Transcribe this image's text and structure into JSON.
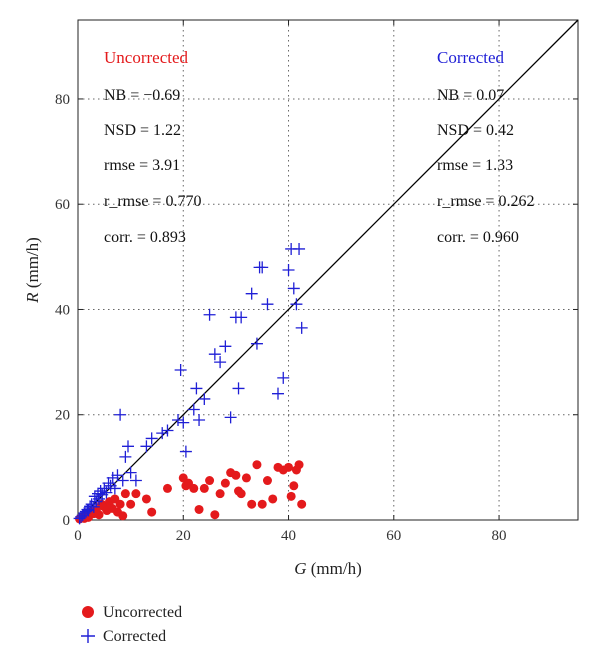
{
  "chart_data": {
    "type": "scatter",
    "xlabel_var": "G",
    "xlabel_unit": " (mm/h)",
    "ylabel_var": "R",
    "ylabel_unit": " (mm/h)",
    "xlim": [
      0,
      95
    ],
    "ylim": [
      0,
      95
    ],
    "xticks": [
      0,
      20,
      40,
      60,
      80
    ],
    "yticks": [
      0,
      20,
      40,
      60,
      80
    ],
    "grid": true,
    "reference_line": "1:1",
    "series": [
      {
        "name": "Uncorrected",
        "marker": "filled-circle",
        "color": "#e41a1c",
        "points": [
          [
            0.3,
            0.2
          ],
          [
            0.6,
            0.4
          ],
          [
            0.9,
            0.6
          ],
          [
            1.2,
            0.3
          ],
          [
            1.5,
            1.0
          ],
          [
            1.8,
            0.8
          ],
          [
            2.0,
            0.5
          ],
          [
            2.5,
            1.5
          ],
          [
            3.0,
            1.2
          ],
          [
            3.5,
            2.0
          ],
          [
            4.0,
            1.0
          ],
          [
            4.5,
            3.0
          ],
          [
            5.0,
            2.5
          ],
          [
            5.5,
            1.8
          ],
          [
            6.0,
            3.5
          ],
          [
            6.5,
            2.2
          ],
          [
            7.0,
            4.0
          ],
          [
            7.5,
            1.5
          ],
          [
            8.0,
            3.0
          ],
          [
            8.5,
            0.8
          ],
          [
            9.0,
            5.0
          ],
          [
            10.0,
            3.0
          ],
          [
            11.0,
            5.0
          ],
          [
            13.0,
            4.0
          ],
          [
            14.0,
            1.5
          ],
          [
            17.0,
            6.0
          ],
          [
            20.0,
            8.0
          ],
          [
            20.5,
            6.5
          ],
          [
            21.0,
            7.0
          ],
          [
            22.0,
            6.0
          ],
          [
            23.0,
            2.0
          ],
          [
            24.0,
            6.0
          ],
          [
            25.0,
            7.5
          ],
          [
            26.0,
            1.0
          ],
          [
            27.0,
            5.0
          ],
          [
            28.0,
            7.0
          ],
          [
            29.0,
            9.0
          ],
          [
            30.0,
            8.5
          ],
          [
            30.5,
            5.5
          ],
          [
            31.0,
            5.0
          ],
          [
            32.0,
            8.0
          ],
          [
            33.0,
            3.0
          ],
          [
            34.0,
            10.5
          ],
          [
            35.0,
            3.0
          ],
          [
            36.0,
            7.5
          ],
          [
            37.0,
            4.0
          ],
          [
            38.0,
            10.0
          ],
          [
            39.0,
            9.5
          ],
          [
            40.0,
            10.0
          ],
          [
            40.5,
            4.5
          ],
          [
            41.0,
            6.5
          ],
          [
            41.5,
            9.5
          ],
          [
            42.0,
            10.5
          ],
          [
            42.5,
            3.0
          ]
        ]
      },
      {
        "name": "Corrected",
        "marker": "plus",
        "color": "#1f1fd6",
        "points": [
          [
            0.3,
            0.3
          ],
          [
            0.6,
            0.6
          ],
          [
            0.9,
            0.9
          ],
          [
            1.2,
            1.3
          ],
          [
            1.5,
            1.6
          ],
          [
            1.8,
            2.0
          ],
          [
            2.0,
            1.8
          ],
          [
            2.3,
            2.6
          ],
          [
            2.6,
            3.0
          ],
          [
            3.0,
            2.5
          ],
          [
            3.2,
            4.5
          ],
          [
            3.5,
            3.5
          ],
          [
            3.8,
            5.0
          ],
          [
            4.0,
            4.0
          ],
          [
            4.3,
            5.5
          ],
          [
            4.6,
            4.8
          ],
          [
            5.0,
            6.0
          ],
          [
            5.4,
            5.2
          ],
          [
            5.8,
            7.0
          ],
          [
            6.2,
            6.5
          ],
          [
            6.6,
            8.0
          ],
          [
            7.0,
            6.0
          ],
          [
            7.5,
            8.5
          ],
          [
            8.0,
            20.0
          ],
          [
            8.5,
            7.5
          ],
          [
            9.0,
            12.0
          ],
          [
            9.5,
            14.0
          ],
          [
            10.0,
            9.0
          ],
          [
            11.0,
            7.5
          ],
          [
            13.0,
            14.0
          ],
          [
            14.0,
            15.5
          ],
          [
            16.0,
            16.5
          ],
          [
            17.0,
            17.0
          ],
          [
            19.0,
            19.0
          ],
          [
            19.5,
            28.5
          ],
          [
            20.0,
            18.5
          ],
          [
            20.5,
            13.0
          ],
          [
            22.0,
            21.0
          ],
          [
            22.5,
            25.0
          ],
          [
            23.0,
            19.0
          ],
          [
            24.0,
            23.0
          ],
          [
            25.0,
            39.0
          ],
          [
            26.0,
            31.5
          ],
          [
            27.0,
            30.0
          ],
          [
            28.0,
            33.0
          ],
          [
            29.0,
            19.5
          ],
          [
            30.0,
            38.5
          ],
          [
            30.5,
            25.0
          ],
          [
            31.0,
            38.5
          ],
          [
            33.0,
            43.0
          ],
          [
            34.0,
            33.5
          ],
          [
            34.5,
            48.0
          ],
          [
            35.0,
            48.0
          ],
          [
            36.0,
            41.0
          ],
          [
            38.0,
            24.0
          ],
          [
            39.0,
            27.0
          ],
          [
            40.0,
            47.5
          ],
          [
            40.5,
            51.5
          ],
          [
            41.0,
            44.0
          ],
          [
            41.5,
            41.0
          ],
          [
            42.0,
            51.5
          ],
          [
            42.5,
            36.5
          ]
        ]
      }
    ],
    "stats": {
      "uncorrected": {
        "header": "Uncorrected",
        "lines": [
          "NB = −0.69",
          "NSD = 1.22",
          "rmse = 3.91",
          "r_rmse = 0.770",
          "corr. = 0.893"
        ]
      },
      "corrected": {
        "header": "Corrected",
        "lines": [
          "NB = 0.07",
          "NSD = 0.42",
          "rmse = 1.33",
          "r_rmse = 0.262",
          "corr. = 0.960"
        ]
      }
    },
    "legend": {
      "position": "bottom-left",
      "entries": [
        "Uncorrected",
        "Corrected"
      ]
    }
  },
  "colors": {
    "uncorrected": "#e41a1c",
    "corrected": "#1f1fd6",
    "reference_line": "#000000",
    "grid": "#666666"
  }
}
